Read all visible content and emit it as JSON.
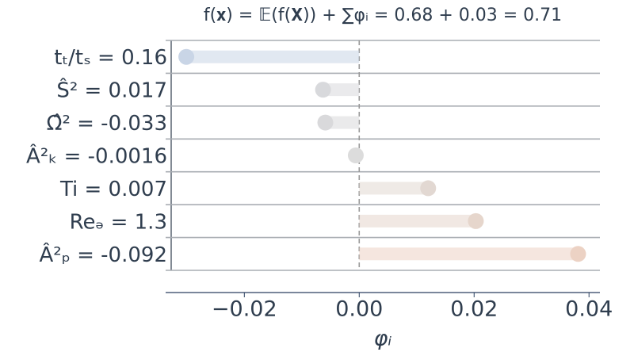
{
  "chart_data": {
    "type": "dot-bar",
    "title": "f(𝐱) = 𝔼(f(𝐗)) + ∑φᵢ = 0.68 + 0.03 = 0.71",
    "x_label": "φᵢ",
    "categories": [
      "tₜ/tₛ = 0.16",
      "Ŝ² = 0.017",
      "Ω̂² = -0.033",
      "Â²ₖ = -0.0016",
      "Ti = 0.007",
      "Reₔ = 1.3",
      "Â²ₚ = -0.092"
    ],
    "values": [
      -0.0301,
      -0.0063,
      -0.0059,
      -0.0006,
      0.012,
      0.0203,
      0.0381
    ],
    "colors": [
      "#c9d5e6",
      "#d8d9dc",
      "#d9d9db",
      "#dcdcdc",
      "#e2d8d2",
      "#e6d6cc",
      "#ecd2c4"
    ],
    "xlim": [
      -0.0337,
      0.0419
    ],
    "xticks": [
      {
        "value": -0.02,
        "label": "−0.02"
      },
      {
        "value": 0,
        "label": "0.00"
      },
      {
        "value": 0.02,
        "label": "0.02"
      },
      {
        "value": 0.04,
        "label": "0.04"
      }
    ]
  }
}
